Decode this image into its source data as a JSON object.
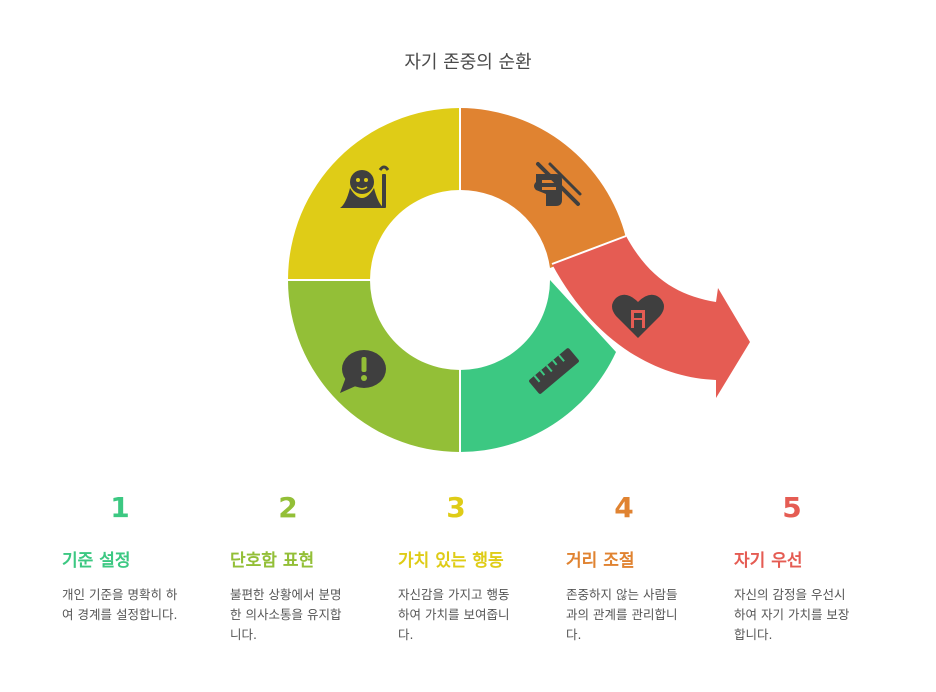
{
  "title": "자기 존중의 순환",
  "colors": {
    "green_light": "#93bf37",
    "green": "#3cc882",
    "yellow": "#dfcc17",
    "orange": "#e08331",
    "red": "#e55c53",
    "icon": "#3f3f3f"
  },
  "segments": [
    {
      "name": "orange-top-right",
      "icon": "no-writing-hand-icon"
    },
    {
      "name": "green-bottom-right",
      "icon": "ruler-icon"
    },
    {
      "name": "light-green-bottom-left",
      "icon": "exclamation-speech-bubble-icon"
    },
    {
      "name": "yellow-top-left",
      "icon": "wise-elder-icon"
    },
    {
      "name": "red-arrow",
      "icon": "heart-with-door-icon"
    }
  ],
  "steps": [
    {
      "number": "1",
      "heading": "기준 설정",
      "desc_lines": [
        "개인 기준을 명확히 하",
        "여 경계를 설정합니다."
      ],
      "color": "#3cc882"
    },
    {
      "number": "2",
      "heading": "단호함 표현",
      "desc_lines": [
        "불편한 상황에서 분명",
        "한 의사소통을 유지합",
        "니다."
      ],
      "color": "#93bf37"
    },
    {
      "number": "3",
      "heading": "가치 있는 행동",
      "desc_lines": [
        "자신감을 가지고 행동",
        "하여 가치를 보여줍니",
        "다."
      ],
      "color": "#dfcc17"
    },
    {
      "number": "4",
      "heading": "거리 조절",
      "desc_lines": [
        "존중하지 않는 사람들",
        "과의 관계를 관리합니",
        "다."
      ],
      "color": "#e08331"
    },
    {
      "number": "5",
      "heading": "자기 우선",
      "desc_lines": [
        "자신의 감정을 우선시",
        "하여 자기 가치를 보장",
        "합니다."
      ],
      "color": "#e55c53"
    }
  ]
}
